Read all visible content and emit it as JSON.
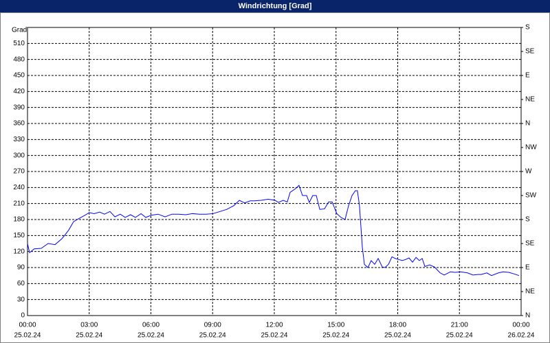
{
  "chart_data": {
    "type": "line",
    "title": "Windrichtung [Grad]",
    "y_label": "Grad",
    "x": [
      0,
      0.1,
      0.33,
      0.67,
      1.0,
      1.34,
      1.67,
      1.84,
      2.0,
      2.24,
      2.51,
      2.84,
      3.0,
      3.24,
      3.51,
      3.74,
      4.01,
      4.25,
      4.51,
      4.75,
      5.01,
      5.25,
      5.52,
      5.75,
      6.02,
      6.35,
      6.69,
      7.02,
      7.35,
      7.69,
      8.02,
      8.36,
      8.69,
      9.02,
      9.36,
      9.69,
      10.03,
      10.3,
      10.56,
      10.83,
      11.03,
      11.36,
      11.7,
      12.03,
      12.2,
      12.43,
      12.63,
      12.77,
      13.04,
      13.2,
      13.37,
      13.57,
      13.7,
      13.87,
      14.04,
      14.21,
      14.44,
      14.64,
      14.81,
      15.04,
      15.24,
      15.44,
      15.61,
      15.78,
      15.94,
      16.04,
      16.14,
      16.28,
      16.38,
      16.55,
      16.71,
      16.88,
      17.05,
      17.25,
      17.38,
      17.55,
      17.72,
      17.88,
      18.05,
      18.22,
      18.38,
      18.55,
      18.72,
      18.89,
      19.05,
      19.19,
      19.32,
      19.55,
      19.79,
      20.06,
      20.26,
      20.56,
      20.79,
      21.06,
      21.39,
      21.66,
      21.89,
      22.06,
      22.33,
      22.56,
      22.9,
      23.13,
      23.4,
      23.66,
      23.9
    ],
    "series": [
      {
        "name": "Windrichtung",
        "color": "#0000ff",
        "values": [
          135,
          118,
          125,
          126,
          135,
          133,
          144,
          152,
          160,
          176,
          182,
          189,
          193,
          191,
          194,
          190,
          195,
          185,
          190,
          184,
          189,
          184,
          191,
          184,
          188,
          190,
          185,
          190,
          190,
          189,
          191,
          190,
          190,
          191,
          195,
          199,
          206,
          216,
          211,
          215,
          215,
          216,
          218,
          216,
          212,
          216,
          213,
          231,
          238,
          244,
          225,
          225,
          212,
          225,
          225,
          199,
          200,
          213,
          213,
          191,
          184,
          180,
          206,
          225,
          234,
          234,
          206,
          128,
          96,
          90,
          103,
          96,
          107,
          91,
          90,
          96,
          110,
          107,
          105,
          103,
          105,
          108,
          100,
          109,
          103,
          107,
          92,
          95,
          91,
          80,
          76,
          82,
          81,
          82,
          80,
          76,
          77,
          77,
          80,
          75,
          80,
          82,
          81,
          78,
          75
        ]
      }
    ],
    "xlim": [
      0,
      24
    ],
    "xticks": [
      {
        "value": 0,
        "label": "00:00",
        "date": "25.02.24"
      },
      {
        "value": 3,
        "label": "03:00",
        "date": "25.02.24"
      },
      {
        "value": 6,
        "label": "06:00",
        "date": "25.02.24"
      },
      {
        "value": 9,
        "label": "09:00",
        "date": "25.02.24"
      },
      {
        "value": 12,
        "label": "12:00",
        "date": "25.02.24"
      },
      {
        "value": 15,
        "label": "15:00",
        "date": "25.02.24"
      },
      {
        "value": 18,
        "label": "18:00",
        "date": "25.02.24"
      },
      {
        "value": 21,
        "label": "21:00",
        "date": "25.02.24"
      },
      {
        "value": 24,
        "label": "00:00",
        "date": "26.02.24"
      }
    ],
    "ylim": [
      0,
      540
    ],
    "yticks": [
      0,
      30,
      60,
      90,
      120,
      150,
      180,
      210,
      240,
      270,
      300,
      330,
      360,
      390,
      420,
      450,
      480,
      510
    ],
    "y2lim": [
      0,
      540
    ],
    "y2ticks": [
      {
        "value": 0,
        "label": "N"
      },
      {
        "value": 45,
        "label": "NE"
      },
      {
        "value": 90,
        "label": "E"
      },
      {
        "value": 135,
        "label": "SE"
      },
      {
        "value": 180,
        "label": "S"
      },
      {
        "value": 225,
        "label": "SW"
      },
      {
        "value": 270,
        "label": "W"
      },
      {
        "value": 315,
        "label": "NW"
      },
      {
        "value": 360,
        "label": "N"
      },
      {
        "value": 405,
        "label": "NE"
      },
      {
        "value": 450,
        "label": "E"
      },
      {
        "value": 495,
        "label": "SE"
      },
      {
        "value": 540,
        "label": "S"
      }
    ],
    "grid": true
  }
}
